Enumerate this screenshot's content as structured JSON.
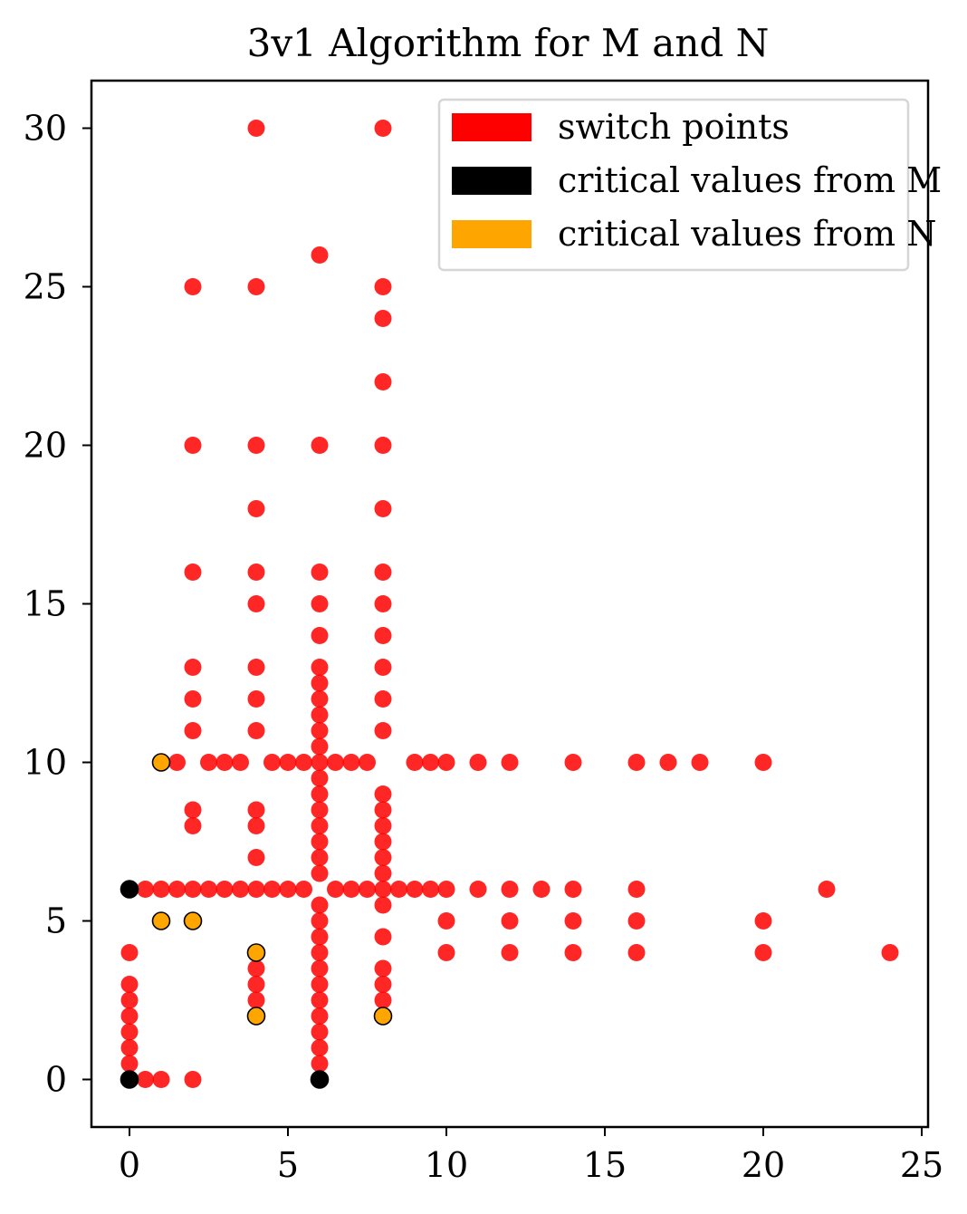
{
  "chart_data": {
    "type": "scatter",
    "title": "3v1 Algorithm for M and N",
    "xlabel": "",
    "ylabel": "",
    "xlim": [
      -1.2,
      25.2
    ],
    "ylim": [
      -1.5,
      31.5
    ],
    "xticks": [
      0,
      5,
      10,
      15,
      20,
      25
    ],
    "yticks": [
      0,
      5,
      10,
      15,
      20,
      25,
      30
    ],
    "xtick_labels": [
      "0",
      "5",
      "10",
      "15",
      "20",
      "25"
    ],
    "ytick_labels": [
      "0",
      "5",
      "10",
      "15",
      "20",
      "25",
      "30"
    ],
    "grid": false,
    "legend_position": "top-right",
    "series": [
      {
        "name": "switch points",
        "color": "#ff0000",
        "points": [
          [
            4,
            30
          ],
          [
            8,
            30
          ],
          [
            6,
            26
          ],
          [
            2,
            25
          ],
          [
            4,
            25
          ],
          [
            8,
            25
          ],
          [
            8,
            24
          ],
          [
            8,
            22
          ],
          [
            2,
            20
          ],
          [
            4,
            20
          ],
          [
            6,
            20
          ],
          [
            8,
            20
          ],
          [
            4,
            18
          ],
          [
            8,
            18
          ],
          [
            2,
            16
          ],
          [
            4,
            16
          ],
          [
            6,
            16
          ],
          [
            8,
            16
          ],
          [
            4,
            15
          ],
          [
            6,
            15
          ],
          [
            8,
            15
          ],
          [
            6,
            14
          ],
          [
            8,
            14
          ],
          [
            2,
            13
          ],
          [
            4,
            13
          ],
          [
            6,
            13
          ],
          [
            8,
            13
          ],
          [
            6,
            12.5
          ],
          [
            2,
            12
          ],
          [
            4,
            12
          ],
          [
            6,
            12
          ],
          [
            8,
            12
          ],
          [
            6,
            11.5
          ],
          [
            2,
            11
          ],
          [
            4,
            11
          ],
          [
            6,
            11
          ],
          [
            8,
            11
          ],
          [
            6,
            10.5
          ],
          [
            1.5,
            10
          ],
          [
            2.5,
            10
          ],
          [
            3,
            10
          ],
          [
            3.5,
            10
          ],
          [
            4.5,
            10
          ],
          [
            5,
            10
          ],
          [
            5.5,
            10
          ],
          [
            6,
            10
          ],
          [
            6.5,
            10
          ],
          [
            7,
            10
          ],
          [
            7.5,
            10
          ],
          [
            9,
            10
          ],
          [
            9.5,
            10
          ],
          [
            10,
            10
          ],
          [
            11,
            10
          ],
          [
            12,
            10
          ],
          [
            14,
            10
          ],
          [
            16,
            10
          ],
          [
            17,
            10
          ],
          [
            18,
            10
          ],
          [
            20,
            10
          ],
          [
            6,
            9.5
          ],
          [
            6,
            9
          ],
          [
            8,
            9
          ],
          [
            2,
            8.5
          ],
          [
            4,
            8.5
          ],
          [
            6,
            8.5
          ],
          [
            8,
            8.5
          ],
          [
            2,
            8
          ],
          [
            4,
            8
          ],
          [
            6,
            8
          ],
          [
            8,
            8
          ],
          [
            6,
            7.5
          ],
          [
            8,
            7.5
          ],
          [
            4,
            7
          ],
          [
            6,
            7
          ],
          [
            8,
            7
          ],
          [
            6,
            6.5
          ],
          [
            8,
            6.5
          ],
          [
            0.5,
            6
          ],
          [
            1,
            6
          ],
          [
            1.5,
            6
          ],
          [
            2,
            6
          ],
          [
            2.5,
            6
          ],
          [
            3,
            6
          ],
          [
            3.5,
            6
          ],
          [
            4,
            6
          ],
          [
            4.5,
            6
          ],
          [
            5,
            6
          ],
          [
            5.5,
            6
          ],
          [
            6.5,
            6
          ],
          [
            7,
            6
          ],
          [
            7.5,
            6
          ],
          [
            8,
            6
          ],
          [
            8.5,
            6
          ],
          [
            9,
            6
          ],
          [
            9.5,
            6
          ],
          [
            10,
            6
          ],
          [
            11,
            6
          ],
          [
            12,
            6
          ],
          [
            13,
            6
          ],
          [
            14,
            6
          ],
          [
            16,
            6
          ],
          [
            22,
            6
          ],
          [
            6,
            5.5
          ],
          [
            8,
            5.5
          ],
          [
            6,
            5
          ],
          [
            10,
            5
          ],
          [
            12,
            5
          ],
          [
            14,
            5
          ],
          [
            16,
            5
          ],
          [
            20,
            5
          ],
          [
            6,
            4.5
          ],
          [
            8,
            4.5
          ],
          [
            0,
            4
          ],
          [
            6,
            4
          ],
          [
            10,
            4
          ],
          [
            12,
            4
          ],
          [
            14,
            4
          ],
          [
            16,
            4
          ],
          [
            20,
            4
          ],
          [
            24,
            4
          ],
          [
            4,
            3.5
          ],
          [
            6,
            3.5
          ],
          [
            8,
            3.5
          ],
          [
            0,
            3
          ],
          [
            4,
            3
          ],
          [
            6,
            3
          ],
          [
            8,
            3
          ],
          [
            0,
            2.5
          ],
          [
            4,
            2.5
          ],
          [
            6,
            2.5
          ],
          [
            8,
            2.5
          ],
          [
            0,
            2
          ],
          [
            6,
            2
          ],
          [
            0,
            1.5
          ],
          [
            6,
            1.5
          ],
          [
            0,
            1
          ],
          [
            6,
            1
          ],
          [
            0,
            0.5
          ],
          [
            6,
            0.5
          ],
          [
            0.5,
            0
          ],
          [
            1,
            0
          ],
          [
            2,
            0
          ]
        ]
      },
      {
        "name": "critical values from M",
        "color": "#000000",
        "points": [
          [
            0,
            6
          ],
          [
            0,
            0
          ],
          [
            6,
            0
          ]
        ]
      },
      {
        "name": "critical values from N",
        "color": "#ffa500",
        "points": [
          [
            1,
            10
          ],
          [
            1,
            5
          ],
          [
            2,
            5
          ],
          [
            4,
            4
          ],
          [
            4,
            2
          ],
          [
            8,
            2
          ]
        ]
      }
    ]
  }
}
